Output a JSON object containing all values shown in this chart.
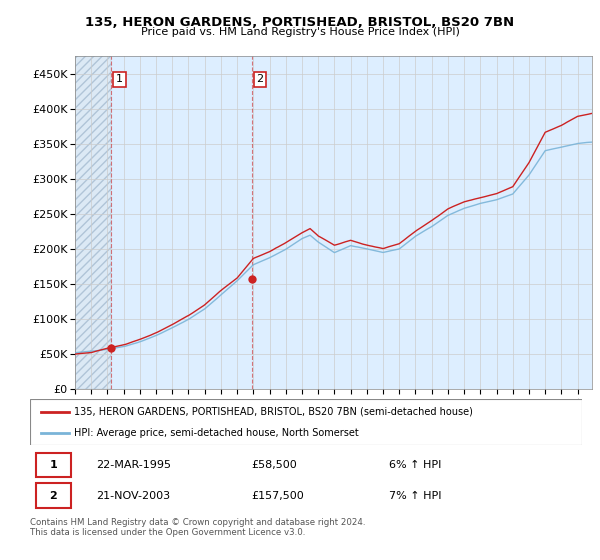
{
  "title": "135, HERON GARDENS, PORTISHEAD, BRISTOL, BS20 7BN",
  "subtitle": "Price paid vs. HM Land Registry's House Price Index (HPI)",
  "hpi_color": "#7ab4d8",
  "price_color": "#cc2222",
  "background_hatch_color": "#dce9f5",
  "background_sale_color": "#ddeeff",
  "legend_label_price": "135, HERON GARDENS, PORTISHEAD, BRISTOL, BS20 7BN (semi-detached house)",
  "legend_label_hpi": "HPI: Average price, semi-detached house, North Somerset",
  "sale1_date_num": 1995.22,
  "sale1_price": 58500,
  "sale2_date_num": 2003.89,
  "sale2_price": 157500,
  "footer": "Contains HM Land Registry data © Crown copyright and database right 2024.\nThis data is licensed under the Open Government Licence v3.0.",
  "table_rows": [
    [
      "1",
      "22-MAR-1995",
      "£58,500",
      "6% ↑ HPI"
    ],
    [
      "2",
      "21-NOV-2003",
      "£157,500",
      "7% ↑ HPI"
    ]
  ],
  "ylim": [
    0,
    475000
  ],
  "yticks": [
    0,
    50000,
    100000,
    150000,
    200000,
    250000,
    300000,
    350000,
    400000,
    450000
  ],
  "xlim_start": 1993.0,
  "xlim_end": 2024.9
}
